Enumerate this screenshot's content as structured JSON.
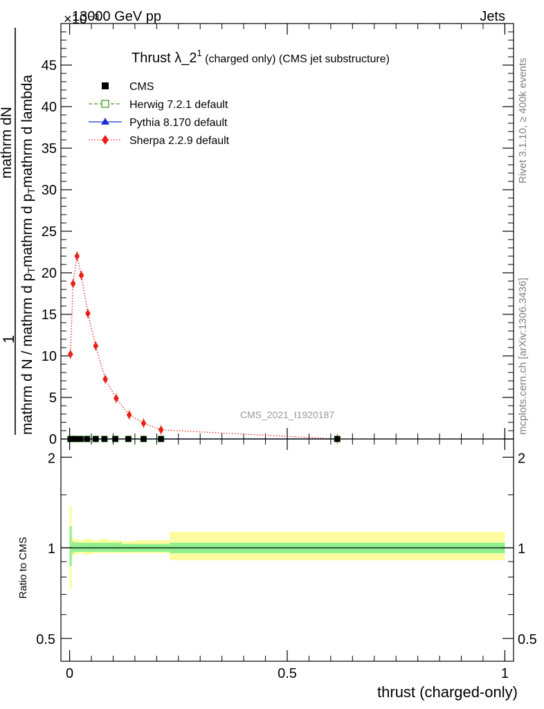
{
  "header": {
    "left": "13000 GeV pp",
    "right": "Jets",
    "exponent_label": "×10⁻³"
  },
  "title": {
    "main": "Thrust λ_2",
    "superscript": "1",
    "suffix": " (charged only) (CMS jet substructure)"
  },
  "side_labels": {
    "rivet": "Rivet 3.1.10, ≥ 400k events",
    "mcplots": "mcplots.cern.ch [arXiv:1306.3436]"
  },
  "watermark": "CMS_2021_I1920187",
  "colors": {
    "cms": "#000000",
    "herwig": "#3a9e1e",
    "pythia": "#1d2dd6",
    "sherpa": "#e8201a",
    "band_inner": "#90f090",
    "band_outer": "#fcfc9e"
  },
  "chart_data": [
    {
      "type": "line",
      "title": "Thrust λ_2¹ (charged only) (CMS jet substructure)",
      "ylabel_fraction_top": "mathrm dN",
      "ylabel_fraction_bottom": "mathrm d N / mathrm d p_T mathrm d p_T mathrm d lambda",
      "ylabel_numerator": "1",
      "ylabel_denominator": "mathrm d N / mathrm d p",
      "ylabel_num_right": "mathrm d p",
      "ylabel_num_right2": "mathrm d lambda",
      "ylabel_sub_T": "T",
      "ylabel_sub_T2": "T",
      "ylabel_pre_frac": "mathrm d N / mathrm d p",
      "ylabel_num_text": "mathrm dN",
      "ylabel_den_text": "mathrm d N / mathrm d p",
      "ylabel_den_mid": "mathrm d p",
      "ylabel_den_end": "mathrm d lambda",
      "xlim": [
        -0.02,
        1.02
      ],
      "ylim": [
        0,
        50
      ],
      "y_scale_note": "×10⁻³",
      "yticks": [
        0,
        5,
        10,
        15,
        20,
        25,
        30,
        35,
        40,
        45
      ],
      "legend_position": "top-left",
      "series": [
        {
          "name": "CMS",
          "marker": "square-filled",
          "x": [
            0.002,
            0.008,
            0.015,
            0.025,
            0.04,
            0.06,
            0.08,
            0.105,
            0.135,
            0.17,
            0.21,
            0.615
          ],
          "y": [
            0.0,
            0.0,
            0.0,
            0.0,
            0.0,
            0.0,
            0.0,
            0.0,
            0.0,
            0.0,
            0.0,
            0.0
          ]
        },
        {
          "name": "Herwig 7.2.1 default",
          "marker": "square-open",
          "line": "dashed",
          "x": [
            0.002,
            0.008,
            0.015,
            0.025,
            0.04,
            0.06,
            0.08,
            0.105,
            0.135,
            0.17,
            0.21,
            0.615
          ],
          "y": [
            0.0,
            0.0,
            0.0,
            0.0,
            0.0,
            0.0,
            0.0,
            0.0,
            0.0,
            0.0,
            0.0,
            0.0
          ]
        },
        {
          "name": "Pythia 8.170 default",
          "marker": "triangle-filled",
          "line": "solid",
          "x": [
            0.002,
            0.008,
            0.015,
            0.025,
            0.04,
            0.06,
            0.08,
            0.105,
            0.135,
            0.17,
            0.21,
            0.615
          ],
          "y": [
            0.0,
            0.0,
            0.0,
            0.0,
            0.0,
            0.0,
            0.0,
            0.0,
            0.0,
            0.0,
            0.0,
            0.0
          ]
        },
        {
          "name": "Sherpa 2.2.9 default",
          "marker": "diamond-filled",
          "line": "dotted",
          "x": [
            0.002,
            0.008,
            0.017,
            0.027,
            0.042,
            0.06,
            0.082,
            0.107,
            0.137,
            0.17,
            0.21,
            0.615
          ],
          "y": [
            10.2,
            18.7,
            22.0,
            19.7,
            15.1,
            11.2,
            7.2,
            4.9,
            2.9,
            1.9,
            1.1,
            0.0
          ]
        }
      ]
    },
    {
      "type": "area",
      "ylabel": "Ratio to CMS",
      "xlabel": "thrust (charged-only)",
      "xlim": [
        -0.02,
        1.02
      ],
      "ylim": [
        0.42,
        2.3
      ],
      "y_scale": "log",
      "xticks": [
        0,
        0.5,
        1
      ],
      "xtick_labels": [
        "0",
        "0.5",
        "1"
      ],
      "yticks": [
        0.5,
        1,
        2
      ],
      "ytick_labels": [
        "0.5",
        "1",
        "2"
      ],
      "reference_line": 1,
      "bins": [
        0,
        0.005,
        0.01,
        0.02,
        0.03,
        0.05,
        0.07,
        0.09,
        0.12,
        0.15,
        0.19,
        0.23,
        1.0
      ],
      "band_inner": [
        [
          0.87,
          1.18
        ],
        [
          0.96,
          1.05
        ],
        [
          0.97,
          1.04
        ],
        [
          0.97,
          1.04
        ],
        [
          0.97,
          1.04
        ],
        [
          0.97,
          1.04
        ],
        [
          0.97,
          1.04
        ],
        [
          0.97,
          1.04
        ],
        [
          0.97,
          1.03
        ],
        [
          0.97,
          1.03
        ],
        [
          0.97,
          1.03
        ],
        [
          0.96,
          1.04
        ]
      ],
      "band_outer": [
        [
          0.73,
          1.38
        ],
        [
          0.94,
          1.08
        ],
        [
          0.95,
          1.07
        ],
        [
          0.96,
          1.06
        ],
        [
          0.95,
          1.07
        ],
        [
          0.96,
          1.06
        ],
        [
          0.96,
          1.07
        ],
        [
          0.96,
          1.06
        ],
        [
          0.96,
          1.05
        ],
        [
          0.96,
          1.06
        ],
        [
          0.96,
          1.06
        ],
        [
          0.91,
          1.13
        ]
      ]
    }
  ]
}
